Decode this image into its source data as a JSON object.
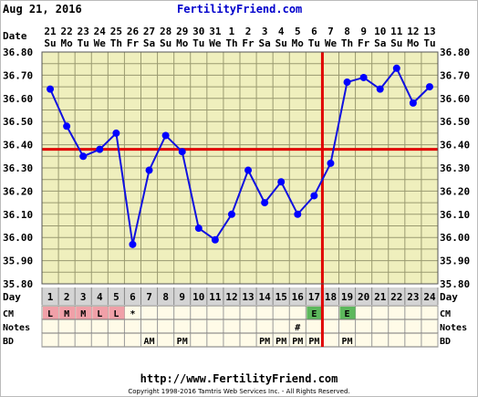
{
  "header": {
    "date": "Aug 21, 2016",
    "site": "FertilityFriend.com"
  },
  "footer": {
    "url": "http://www.FertilityFriend.com",
    "copyright": "Copyright 1998-2016 Tamtris Web Services Inc. - All Rights Reserved."
  },
  "chart_data": {
    "type": "line",
    "title": "",
    "xlabel": "",
    "ylabel": "",
    "ylim": [
      35.8,
      36.8
    ],
    "y_ticks": [
      "35.80",
      "35.90",
      "36.00",
      "36.10",
      "36.20",
      "36.30",
      "36.40",
      "36.50",
      "36.60",
      "36.70",
      "36.80"
    ],
    "date_row_label": "Date",
    "day_row_label": "Day",
    "dates": [
      "21",
      "22",
      "23",
      "24",
      "25",
      "26",
      "27",
      "28",
      "29",
      "30",
      "31",
      "1",
      "2",
      "3",
      "4",
      "5",
      "6",
      "7",
      "8",
      "9",
      "10",
      "11",
      "12",
      "13"
    ],
    "weekdays": [
      "Su",
      "Mo",
      "Tu",
      "We",
      "Th",
      "Fr",
      "Sa",
      "Su",
      "Mo",
      "Tu",
      "We",
      "Th",
      "Fr",
      "Sa",
      "Su",
      "Mo",
      "Tu",
      "We",
      "Th",
      "Fr",
      "Sa",
      "Su",
      "Mo",
      "Tu"
    ],
    "days": [
      1,
      2,
      3,
      4,
      5,
      6,
      7,
      8,
      9,
      10,
      11,
      12,
      13,
      14,
      15,
      16,
      17,
      18,
      19,
      20,
      21,
      22,
      23,
      24
    ],
    "series": [
      {
        "values": [
          36.64,
          36.48,
          36.35,
          36.38,
          36.45,
          35.97,
          36.29,
          36.44,
          36.37,
          36.04,
          35.99,
          36.1,
          36.29,
          36.15,
          36.24,
          36.1,
          36.18,
          36.32,
          36.67,
          36.69,
          36.64,
          36.73,
          36.58,
          36.65
        ]
      }
    ],
    "coverline": 36.38,
    "ovulation_day": 18,
    "grid": true,
    "colors": {
      "plot_bg": "#efefbd",
      "grid": "#9a9a70",
      "line": "#1010e0",
      "marker": "#0000ff",
      "coverline": "#e00000",
      "header_bg": "#d4d4d4",
      "menses_cell": "#f0a0a8",
      "eggwhite_cell": "#5cb85c",
      "row_bg": "#fffbe8"
    },
    "rows": [
      {
        "label": "CM",
        "cells": [
          "L",
          "M",
          "M",
          "L",
          "L",
          "*",
          "",
          "",
          "",
          "",
          "",
          "",
          "",
          "",
          "",
          "",
          "E",
          "",
          "E",
          "",
          "",
          "",
          "",
          ""
        ],
        "fills": [
          "menses",
          "menses",
          "menses",
          "menses",
          "menses",
          "",
          "",
          "",
          "",
          "",
          "",
          "",
          "",
          "",
          "",
          "",
          "eggwhite",
          "",
          "eggwhite",
          "",
          "",
          "",
          "",
          ""
        ]
      },
      {
        "label": "Notes",
        "cells": [
          "",
          "",
          "",
          "",
          "",
          "",
          "",
          "",
          "",
          "",
          "",
          "",
          "",
          "",
          "",
          "#",
          "",
          "",
          "",
          "",
          "",
          "",
          "",
          ""
        ]
      },
      {
        "label": "BD",
        "cells": [
          "",
          "",
          "",
          "",
          "",
          "",
          "AM",
          "",
          "PM",
          "",
          "",
          "",
          "",
          "PM",
          "PM",
          "PM",
          "PM",
          "",
          "PM",
          "",
          "",
          "",
          "",
          ""
        ]
      }
    ]
  }
}
